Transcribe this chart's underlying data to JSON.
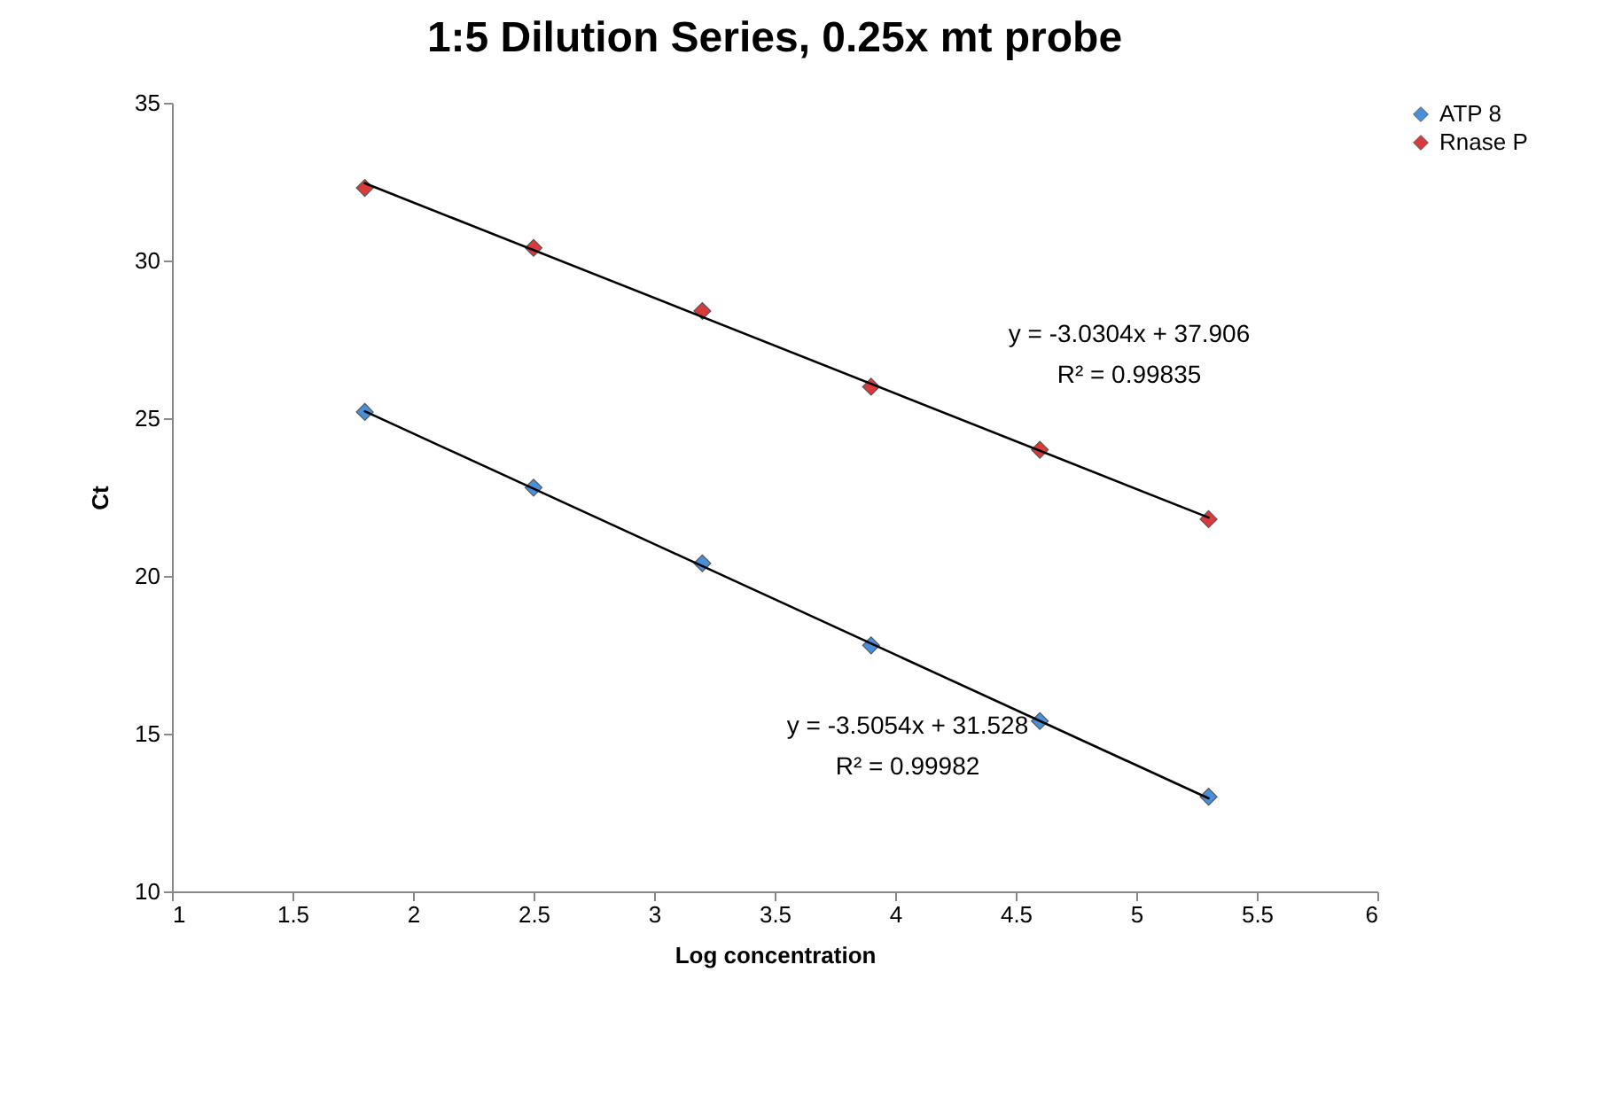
{
  "chart_data": {
    "type": "scatter",
    "title": "1:5 Dilution Series, 0.25x mt probe",
    "xlabel": "Log concentration",
    "ylabel": "Ct",
    "series": [
      {
        "name": "ATP 8",
        "color": "#4a8fd9",
        "x": [
          1.8,
          2.5,
          3.2,
          3.9,
          4.6,
          5.3
        ],
        "values": [
          25.2,
          22.8,
          20.4,
          17.8,
          15.4,
          13.0
        ]
      },
      {
        "name": "Rnase P",
        "color": "#d93a3a",
        "x": [
          1.8,
          2.5,
          3.2,
          3.9,
          4.6,
          5.3
        ],
        "values": [
          32.3,
          30.4,
          28.4,
          26.0,
          24.0,
          21.8
        ]
      },
      {
        "type": "line",
        "marker": "none",
        "color": "#000000",
        "x": [
          1.8,
          5.3
        ],
        "values": [
          25.22,
          12.95
        ]
      },
      {
        "type": "line",
        "marker": "none",
        "color": "#000000",
        "x": [
          1.8,
          5.3
        ],
        "values": [
          32.45,
          21.85
        ]
      }
    ],
    "annotations": [
      "y = -3.0304x + 37.906",
      "R² = 0.99835",
      "y = -3.5054x + 31.528",
      "R² = 0.99982"
    ],
    "xlim": [
      1,
      6
    ],
    "xticks": [
      1,
      1.5,
      2,
      2.5,
      3,
      3.5,
      4,
      4.5,
      5,
      5.5,
      6
    ],
    "ylim": [
      10,
      35
    ],
    "yticks": [
      10,
      15,
      20,
      25,
      30,
      35
    ],
    "grid": false,
    "legend": "right",
    "marker": "diamond"
  }
}
